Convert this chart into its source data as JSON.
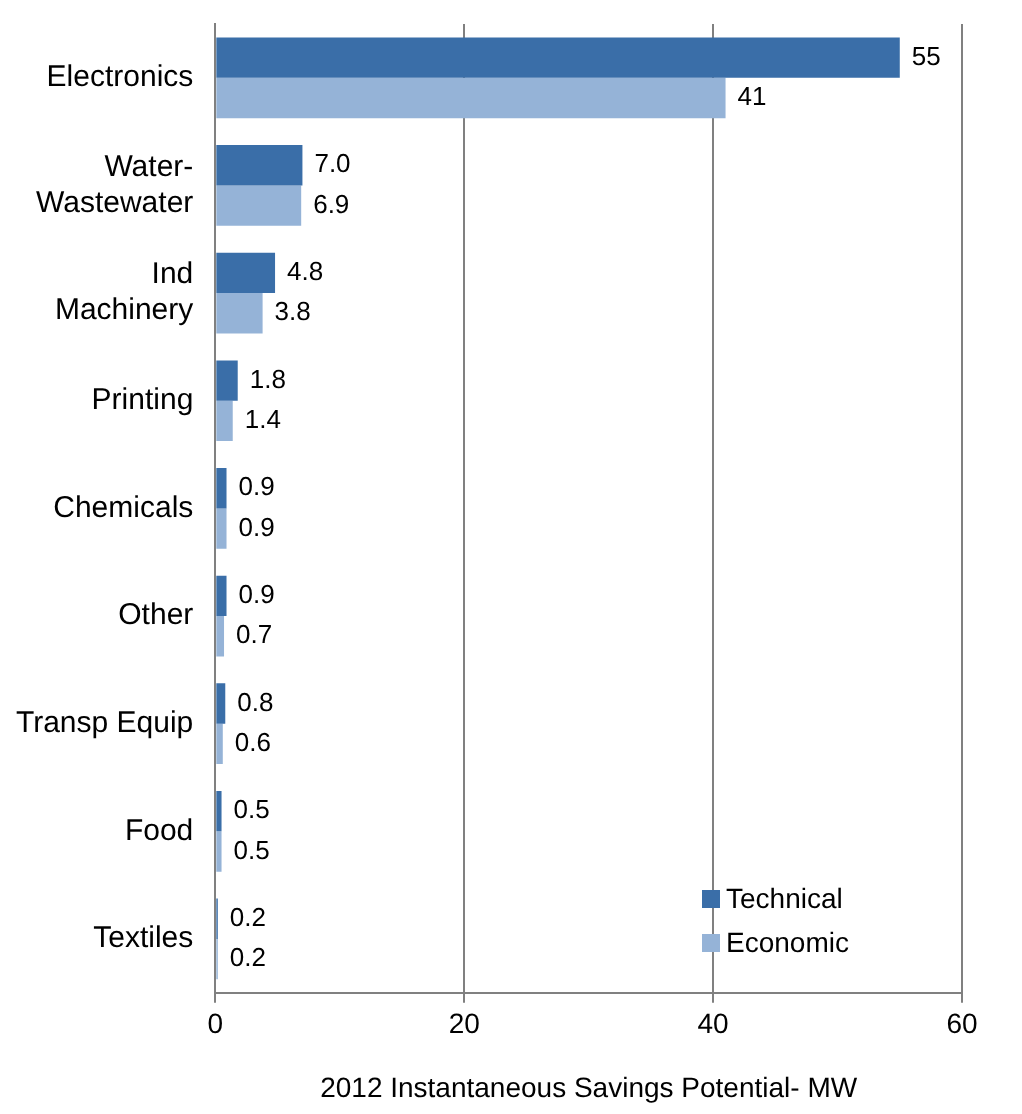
{
  "chart_data": {
    "type": "bar",
    "orientation": "horizontal",
    "xlabel": "2012 Instantaneous Savings Potential- MW",
    "categories": [
      "Electronics",
      "Water-Wastewater",
      "Ind Machinery",
      "Printing",
      "Chemicals",
      "Other",
      "Transp Equip",
      "Food",
      "Textiles"
    ],
    "series": [
      {
        "name": "Technical",
        "color": "#3a6ea8",
        "values": [
          55,
          7.0,
          4.8,
          1.8,
          0.9,
          0.9,
          0.8,
          0.5,
          0.2
        ],
        "value_labels": [
          "55",
          "7.0",
          "4.8",
          "1.8",
          "0.9",
          "0.9",
          "0.8",
          "0.5",
          "0.2"
        ]
      },
      {
        "name": "Economic",
        "color": "#95b3d7",
        "values": [
          41,
          6.9,
          3.8,
          1.4,
          0.9,
          0.7,
          0.6,
          0.5,
          0.2
        ],
        "value_labels": [
          "41",
          "6.9",
          "3.8",
          "1.4",
          "0.9",
          "0.7",
          "0.6",
          "0.5",
          "0.2"
        ]
      }
    ],
    "xlim": [
      0,
      60
    ],
    "xticks": [
      0,
      20,
      40,
      60
    ],
    "grid": "x",
    "legend": "bottom right"
  }
}
